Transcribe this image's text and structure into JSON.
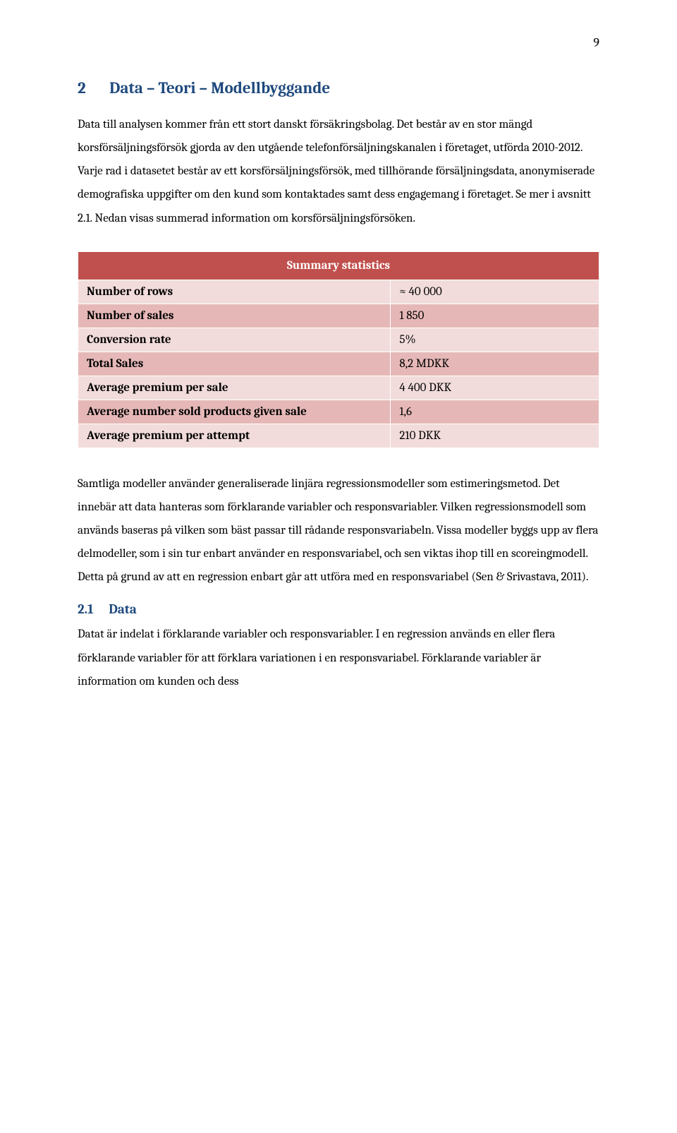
{
  "page_number": "9",
  "heading": {
    "number": "2",
    "title": "Data – Teori – Modellbyggande"
  },
  "paragraph1": "Data till analysen kommer från ett stort danskt försäkringsbolag. Det består av en stor mängd korsförsäljningsförsök gjorda av den utgående telefonförsäljningskanalen i företaget, utförda 2010-2012. Varje rad i datasetet består av ett korsförsäljningsförsök, med tillhörande försäljningsdata, anonymiserade demografiska uppgifter om den kund som kontaktades samt dess engagemang i företaget. Se mer i avsnitt 2.1. Nedan visas summerad information om korsförsäljningsförsöken.",
  "table": {
    "header": "Summary statistics",
    "rows": [
      {
        "label": "Number of rows",
        "value": "≈ 40 000"
      },
      {
        "label": "Number of sales",
        "value": "1 850"
      },
      {
        "label": "Conversion rate",
        "value": "5%"
      },
      {
        "label": "Total Sales",
        "value": "8,2 MDKK"
      },
      {
        "label": "Average premium per sale",
        "value": "4 400 DKK"
      },
      {
        "label": "Average number sold products given sale",
        "value": "1,6"
      },
      {
        "label": "Average premium per attempt",
        "value": "210 DKK"
      }
    ],
    "header_bg": "#c0504d",
    "header_fg": "#ffffff",
    "row_odd_bg": "#f2dcdb",
    "row_even_bg": "#e5b8b7",
    "border_color": "#ffffff"
  },
  "paragraph2": "Samtliga modeller använder generaliserade linjära regressionsmodeller som estimeringsmetod. Det innebär att data hanteras som förklarande variabler och responsvariabler. Vilken regressionsmodell som används baseras på vilken som bäst passar till rådande responsvariabeln. Vissa modeller byggs upp av flera delmodeller, som i sin tur enbart använder en responsvariabel, och sen viktas ihop till en scoreingmodell. Detta på grund av att en regression enbart går att utföra med en responsvariabel (Sen & Srivastava, 2011).",
  "subsection": {
    "number": "2.1",
    "title": "Data"
  },
  "paragraph3": "Datat är indelat i förklarande variabler och responsvariabler. I en regression används en eller flera förklarande variabler för att förklara variationen i en responsvariabel. Förklarande variabler är information om kunden och dess"
}
